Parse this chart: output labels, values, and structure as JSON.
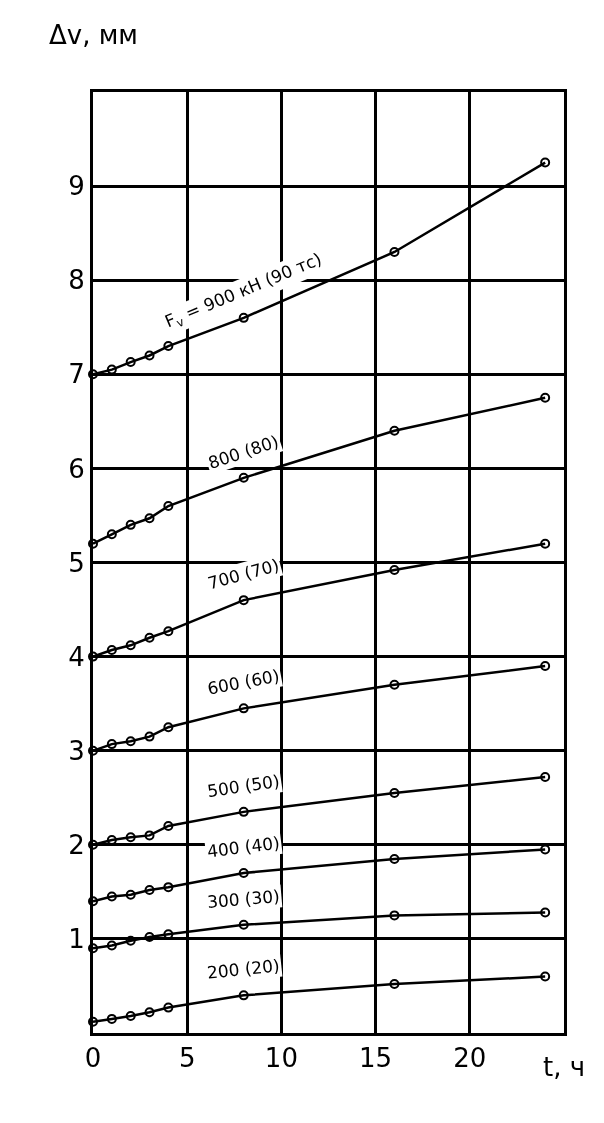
{
  "chart_data": {
    "type": "line",
    "xlabel": "t, ч",
    "ylabel": "Δv, мм",
    "x": [
      0,
      1,
      2,
      3,
      4,
      8,
      16,
      24
    ],
    "xlim": [
      0,
      25
    ],
    "ylim": [
      0,
      10
    ],
    "xticks": [
      0,
      5,
      10,
      15,
      20
    ],
    "yticks": [
      1,
      2,
      3,
      4,
      5,
      6,
      7,
      8,
      9
    ],
    "grid": true,
    "marker": "circle",
    "line_style": "solid",
    "legend": false,
    "series": [
      {
        "name": "F$_{v}$ = 900 кН (90 тс)",
        "color": "#000000",
        "values": [
          7.0,
          7.05,
          7.13,
          7.2,
          7.3,
          7.6,
          8.3,
          9.25
        ]
      },
      {
        "name": "800 (80)",
        "color": "#000000",
        "values": [
          5.2,
          5.3,
          5.4,
          5.47,
          5.6,
          5.9,
          6.4,
          6.75
        ]
      },
      {
        "name": "700 (70)",
        "color": "#000000",
        "values": [
          4.0,
          4.07,
          4.12,
          4.2,
          4.27,
          4.6,
          4.92,
          5.2
        ]
      },
      {
        "name": "600 (60)",
        "color": "#000000",
        "values": [
          3.0,
          3.07,
          3.1,
          3.15,
          3.25,
          3.45,
          3.7,
          3.9
        ]
      },
      {
        "name": "500 (50)",
        "color": "#000000",
        "values": [
          2.0,
          2.05,
          2.08,
          2.1,
          2.2,
          2.35,
          2.55,
          2.72
        ]
      },
      {
        "name": "400 (40)",
        "color": "#000000",
        "values": [
          1.4,
          1.45,
          1.47,
          1.52,
          1.55,
          1.7,
          1.85,
          1.95
        ]
      },
      {
        "name": "300 (30)",
        "color": "#000000",
        "values": [
          0.9,
          0.93,
          0.98,
          1.02,
          1.05,
          1.15,
          1.25,
          1.28
        ]
      },
      {
        "name": "200 (20)",
        "color": "#000000",
        "values": [
          0.12,
          0.15,
          0.18,
          0.22,
          0.27,
          0.4,
          0.52,
          0.6
        ]
      }
    ]
  }
}
